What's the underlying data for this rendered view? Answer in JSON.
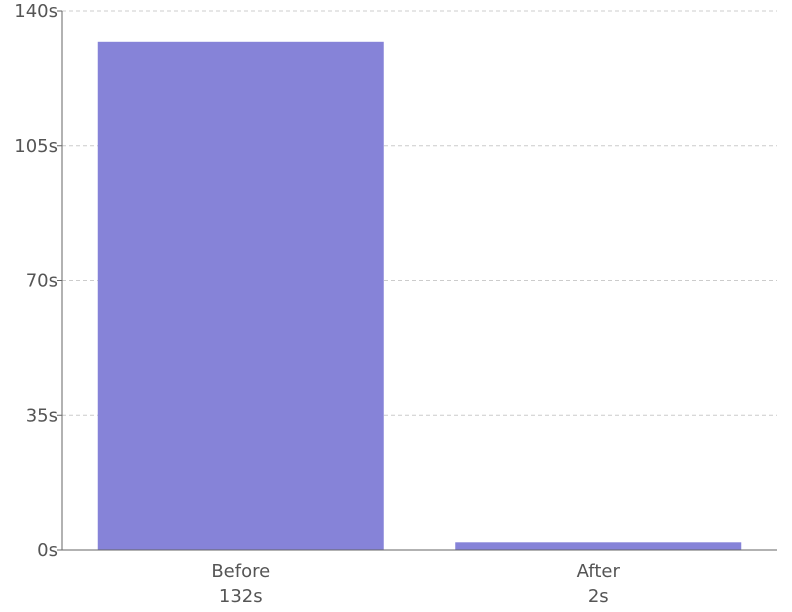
{
  "chart_data": {
    "type": "bar",
    "title": "",
    "xlabel": "",
    "ylabel": "",
    "categories": [
      "Before",
      "After"
    ],
    "values": [
      132,
      2
    ],
    "value_labels": [
      "132s",
      "2s"
    ],
    "ylim": [
      0,
      140
    ],
    "yticks": [
      0,
      35,
      70,
      105,
      140
    ],
    "ytick_labels": [
      "0s",
      "35s",
      "70s",
      "105s",
      "140s"
    ],
    "grid": true,
    "grid_style": "dashed-horizontal",
    "legend": "none",
    "colors": {
      "bar": "#8683d8",
      "axis": "#666666",
      "grid": "#cccccc",
      "text": "#555555"
    }
  }
}
